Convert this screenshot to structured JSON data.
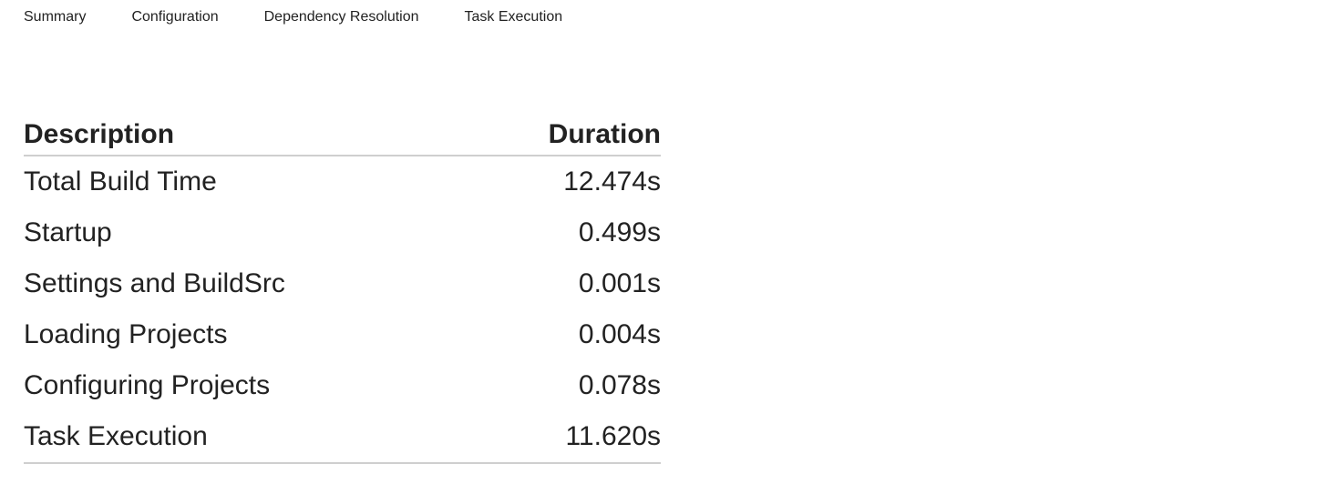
{
  "tabs": [
    {
      "label": "Summary",
      "active": true
    },
    {
      "label": "Configuration",
      "active": false
    },
    {
      "label": "Dependency Resolution",
      "active": false
    },
    {
      "label": "Task Execution",
      "active": false
    }
  ],
  "table": {
    "header": [
      "Description",
      "Duration"
    ],
    "rows": [
      [
        "Total Build Time",
        "12.474s"
      ],
      [
        "Startup",
        "0.499s"
      ],
      [
        "Settings and BuildSrc",
        "0.001s"
      ],
      [
        "Loading Projects",
        "0.004s"
      ],
      [
        "Configuring Projects",
        "0.078s"
      ],
      [
        "Task Execution",
        "11.620s"
      ]
    ]
  }
}
